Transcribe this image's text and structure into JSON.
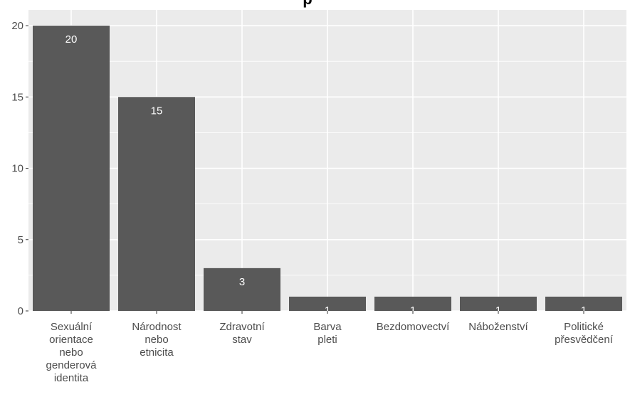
{
  "chart_data": {
    "type": "bar",
    "title_fragment": "p",
    "categories": [
      [
        "Sexuální",
        "orientace",
        "nebo",
        "genderová",
        "identita"
      ],
      [
        "Národnost",
        "nebo",
        "etnicita"
      ],
      [
        "Zdravotní",
        "stav"
      ],
      [
        "Barva",
        "pleti"
      ],
      [
        "Bezdomovectví"
      ],
      [
        "Náboženství"
      ],
      [
        "Politické",
        "přesvědčení"
      ]
    ],
    "values": [
      20,
      15,
      3,
      1,
      1,
      1,
      1
    ],
    "data_labels": [
      "20",
      "15",
      "3",
      "1",
      "1",
      "1",
      "1"
    ],
    "y_ticks": [
      0,
      5,
      10,
      15,
      20
    ],
    "y_tick_labels": [
      "0",
      "5",
      "10",
      "15",
      "20"
    ],
    "ylim": [
      0,
      21.1
    ],
    "grid": true,
    "colors": {
      "bar": "#595959",
      "panel": "#ebebeb",
      "grid": "#ffffff",
      "data_label": "#ffffff",
      "axis_text": "#4d4d4d"
    }
  }
}
